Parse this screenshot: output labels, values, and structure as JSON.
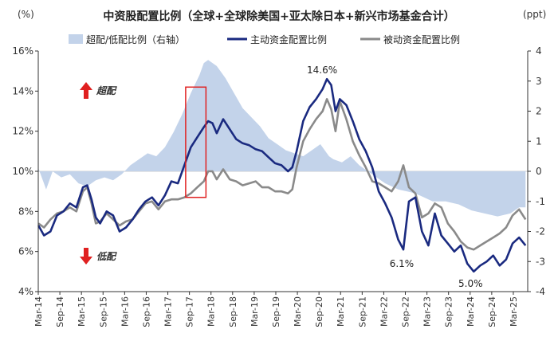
{
  "chart_data": {
    "type": "line",
    "title": "中资股配置比例（全球+全球除美国+亚太除日本+新兴市场基金合计）",
    "ylabel_left": "(%)",
    "ylabel_right": "(ppt)",
    "ylim_left": [
      4,
      16
    ],
    "ylim_right": [
      -4,
      4
    ],
    "left_ticks": [
      "4%",
      "6%",
      "8%",
      "10%",
      "12%",
      "14%",
      "16%"
    ],
    "right_ticks": [
      "-4",
      "-3",
      "-2",
      "-1",
      "0",
      "1",
      "2",
      "3",
      "4"
    ],
    "x_start": 2014.167,
    "x_end": 2025.5,
    "x_tick_labels": [
      "Mar-14",
      "Sep-14",
      "Mar-15",
      "Sep-15",
      "Mar-16",
      "Sep-16",
      "Mar-17",
      "Sep-17",
      "Mar-18",
      "Sep-18",
      "Mar-19",
      "Sep-19",
      "Mar-20",
      "Sep-20",
      "Mar-21",
      "Sep-21",
      "Mar-22",
      "Sep-22",
      "Mar-23",
      "Sep-23",
      "Mar-24",
      "Sep-24",
      "Mar-25"
    ],
    "x_tick_values": [
      2014.167,
      2014.667,
      2015.167,
      2015.667,
      2016.167,
      2016.667,
      2017.167,
      2017.667,
      2018.167,
      2018.667,
      2019.167,
      2019.667,
      2020.167,
      2020.667,
      2021.167,
      2021.667,
      2022.167,
      2022.667,
      2023.167,
      2023.667,
      2024.167,
      2024.667,
      2025.167
    ],
    "series": [
      {
        "name": "超配/低配比例（右轴）",
        "type": "area",
        "axis": "right",
        "color": "#c3d3ea",
        "x": [
          2014.17,
          2014.35,
          2014.5,
          2014.7,
          2014.9,
          2015.1,
          2015.3,
          2015.5,
          2015.7,
          2015.9,
          2016.1,
          2016.3,
          2016.5,
          2016.7,
          2016.9,
          2017.1,
          2017.3,
          2017.5,
          2017.7,
          2017.9,
          2018.0,
          2018.1,
          2018.3,
          2018.5,
          2018.7,
          2018.9,
          2019.1,
          2019.3,
          2019.5,
          2019.7,
          2019.9,
          2020.1,
          2020.3,
          2020.5,
          2020.7,
          2020.9,
          2021.0,
          2021.2,
          2021.4,
          2021.6,
          2021.8,
          2022.0,
          2022.2,
          2022.5,
          2022.8,
          2023.0,
          2023.3,
          2023.6,
          2023.9,
          2024.2,
          2024.5,
          2024.8,
          2025.1,
          2025.3,
          2025.45
        ],
        "values": [
          0.1,
          -0.6,
          0.0,
          -0.2,
          -0.1,
          -0.4,
          -0.5,
          -0.3,
          -0.2,
          -0.3,
          -0.1,
          0.2,
          0.4,
          0.6,
          0.5,
          0.8,
          1.3,
          1.9,
          2.6,
          3.2,
          3.6,
          3.7,
          3.5,
          3.1,
          2.6,
          2.1,
          1.8,
          1.5,
          1.1,
          0.9,
          0.7,
          0.6,
          0.5,
          0.7,
          0.9,
          0.5,
          0.4,
          0.3,
          0.5,
          0.2,
          0.0,
          -0.2,
          -0.4,
          -0.6,
          -0.7,
          -0.8,
          -1.0,
          -1.0,
          -1.1,
          -1.3,
          -1.4,
          -1.5,
          -1.4,
          -1.2,
          -1.2
        ]
      },
      {
        "name": "主动资金配置比例",
        "type": "line",
        "axis": "left",
        "color": "#1a2a80",
        "x": [
          2014.17,
          2014.3,
          2014.45,
          2014.6,
          2014.75,
          2014.9,
          2015.05,
          2015.2,
          2015.3,
          2015.4,
          2015.5,
          2015.6,
          2015.75,
          2015.9,
          2016.05,
          2016.2,
          2016.35,
          2016.5,
          2016.65,
          2016.8,
          2016.95,
          2017.1,
          2017.25,
          2017.4,
          2017.55,
          2017.7,
          2017.85,
          2018.0,
          2018.1,
          2018.2,
          2018.3,
          2018.45,
          2018.6,
          2018.75,
          2018.9,
          2019.05,
          2019.2,
          2019.35,
          2019.5,
          2019.65,
          2019.8,
          2019.95,
          2020.05,
          2020.15,
          2020.3,
          2020.45,
          2020.6,
          2020.75,
          2020.85,
          2020.95,
          2021.05,
          2021.15,
          2021.3,
          2021.45,
          2021.6,
          2021.75,
          2021.9,
          2022.05,
          2022.2,
          2022.35,
          2022.5,
          2022.62,
          2022.75,
          2022.9,
          2023.05,
          2023.2,
          2023.35,
          2023.5,
          2023.65,
          2023.8,
          2023.95,
          2024.1,
          2024.25,
          2024.4,
          2024.55,
          2024.7,
          2024.85,
          2025.0,
          2025.15,
          2025.3,
          2025.45
        ],
        "values": [
          7.3,
          6.8,
          7.0,
          7.8,
          8.0,
          8.4,
          8.2,
          9.2,
          9.3,
          8.6,
          7.7,
          7.4,
          8.0,
          7.8,
          7.0,
          7.2,
          7.6,
          8.1,
          8.5,
          8.7,
          8.3,
          8.8,
          9.5,
          9.4,
          10.3,
          11.2,
          11.7,
          12.2,
          12.5,
          12.4,
          11.9,
          12.6,
          12.1,
          11.6,
          11.4,
          11.3,
          11.1,
          11.0,
          10.7,
          10.4,
          10.3,
          10.0,
          10.2,
          11.0,
          12.5,
          13.2,
          13.6,
          14.1,
          14.6,
          14.3,
          13.0,
          13.6,
          13.3,
          12.5,
          11.6,
          11.0,
          10.2,
          9.0,
          8.4,
          7.7,
          6.6,
          6.1,
          8.5,
          8.7,
          7.0,
          6.3,
          7.9,
          6.8,
          6.4,
          6.0,
          6.3,
          5.4,
          5.0,
          5.3,
          5.5,
          5.8,
          5.3,
          5.6,
          6.4,
          6.7,
          6.3
        ]
      },
      {
        "name": "被动资金配置比例",
        "type": "line",
        "axis": "left",
        "color": "#8a8a8a",
        "x": [
          2014.17,
          2014.3,
          2014.45,
          2014.6,
          2014.75,
          2014.9,
          2015.05,
          2015.2,
          2015.3,
          2015.4,
          2015.5,
          2015.6,
          2015.75,
          2015.9,
          2016.05,
          2016.2,
          2016.35,
          2016.5,
          2016.65,
          2016.8,
          2016.95,
          2017.1,
          2017.25,
          2017.4,
          2017.55,
          2017.7,
          2017.85,
          2018.0,
          2018.1,
          2018.2,
          2018.3,
          2018.45,
          2018.6,
          2018.75,
          2018.9,
          2019.05,
          2019.2,
          2019.35,
          2019.5,
          2019.65,
          2019.8,
          2019.95,
          2020.05,
          2020.15,
          2020.3,
          2020.45,
          2020.6,
          2020.75,
          2020.85,
          2020.95,
          2021.05,
          2021.15,
          2021.3,
          2021.45,
          2021.6,
          2021.75,
          2021.9,
          2022.05,
          2022.2,
          2022.35,
          2022.5,
          2022.62,
          2022.75,
          2022.9,
          2023.05,
          2023.2,
          2023.35,
          2023.5,
          2023.65,
          2023.8,
          2023.95,
          2024.1,
          2024.25,
          2024.4,
          2024.55,
          2024.7,
          2024.85,
          2025.0,
          2025.15,
          2025.3,
          2025.45
        ],
        "values": [
          7.4,
          7.2,
          7.6,
          7.9,
          8.0,
          8.2,
          8.0,
          9.0,
          9.2,
          8.4,
          7.4,
          7.5,
          7.9,
          7.6,
          7.3,
          7.5,
          7.6,
          8.0,
          8.4,
          8.5,
          8.1,
          8.5,
          8.6,
          8.6,
          8.7,
          8.9,
          9.2,
          9.5,
          10.0,
          10.0,
          9.6,
          10.1,
          9.6,
          9.5,
          9.3,
          9.4,
          9.5,
          9.2,
          9.2,
          9.0,
          9.0,
          8.9,
          9.1,
          10.2,
          11.5,
          12.1,
          12.6,
          13.0,
          13.6,
          13.1,
          12.0,
          13.5,
          12.6,
          11.5,
          10.8,
          10.2,
          9.5,
          9.4,
          9.2,
          9.0,
          9.5,
          10.3,
          9.2,
          8.9,
          7.7,
          7.9,
          8.4,
          8.2,
          7.4,
          7.0,
          6.5,
          6.2,
          6.1,
          6.3,
          6.5,
          6.7,
          6.9,
          7.2,
          7.8,
          8.1,
          7.6
        ]
      }
    ],
    "annotations": {
      "peak_label": "14.6%",
      "peak_x": 2020.85,
      "peak_y": 14.6,
      "trough1_label": "6.1%",
      "trough1_x": 2022.62,
      "trough1_y": 6.1,
      "trough2_label": "5.0%",
      "trough2_x": 2024.25,
      "trough2_y": 5.0,
      "overweight_label": "超配",
      "underweight_label": "低配",
      "highlight_from": 2017.58,
      "highlight_to": 2018.05
    }
  }
}
